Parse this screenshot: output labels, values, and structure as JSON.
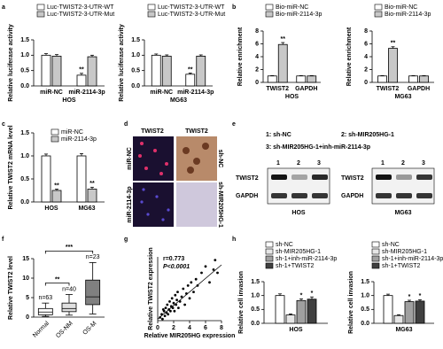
{
  "chart_data": [
    {
      "panel": "a",
      "type": "bar",
      "categories": [
        "miR-NC",
        "miR-2114-3p"
      ],
      "series": [
        {
          "name": "Luc-TWIST2-3-UTR-WT",
          "color": "#ffffff",
          "values": [
            1.0,
            0.35
          ],
          "errors": [
            0.05,
            0.06
          ],
          "significance": [
            null,
            "**"
          ]
        },
        {
          "name": "Luc-TWIST2-3-UTR-Mut",
          "color": "#c8c8c8",
          "values": [
            0.97,
            0.95
          ],
          "errors": [
            0.05,
            0.05
          ],
          "significance": [
            null,
            null
          ]
        }
      ],
      "ylabel": "Relative luciferase activity",
      "xlabel": "HOS",
      "ylim": [
        0,
        1.5
      ],
      "yticks": [
        {
          "value": 0,
          "label": "0.0"
        },
        {
          "value": 0.5,
          "label": "0.5"
        },
        {
          "value": 1,
          "label": "1.0"
        },
        {
          "value": 1.5,
          "label": "1.5"
        }
      ]
    },
    {
      "type": "bar",
      "categories": [
        "miR-NC",
        "miR-2114-3p"
      ],
      "series": [
        {
          "name": "Luc-TWIST2-3-UTR-WT",
          "color": "#ffffff",
          "values": [
            1.0,
            0.38
          ],
          "errors": [
            0.04,
            0.04
          ],
          "significance": [
            null,
            "**"
          ]
        },
        {
          "name": "Luc-TWIST2-3-UTR-Mut",
          "color": "#c8c8c8",
          "values": [
            0.97,
            0.97
          ],
          "errors": [
            0.04,
            0.04
          ],
          "significance": [
            null,
            null
          ]
        }
      ],
      "ylabel": "Relative luciferase activity",
      "xlabel": "MG63",
      "ylim": [
        0,
        1.5
      ],
      "yticks": [
        {
          "value": 0,
          "label": "0.0"
        },
        {
          "value": 0.5,
          "label": "0.5"
        },
        {
          "value": 1,
          "label": "1.0"
        },
        {
          "value": 1.5,
          "label": "1.5"
        }
      ]
    },
    {
      "panel": "b",
      "type": "bar",
      "categories": [
        "TWIST2",
        "GAPDH"
      ],
      "series": [
        {
          "name": "Bio-miR-NC",
          "color": "#ffffff",
          "values": [
            1.0,
            1.0
          ],
          "errors": [
            0.05,
            0.05
          ],
          "significance": [
            null,
            null
          ]
        },
        {
          "name": "Bio-miR-2114-3p",
          "color": "#c8c8c8",
          "values": [
            5.9,
            1.0
          ],
          "errors": [
            0.3,
            0.05
          ],
          "significance": [
            "**",
            null
          ]
        }
      ],
      "ylabel": "Relative enrichment",
      "xlabel": "HOS",
      "ylim": [
        0,
        8
      ],
      "yticks": [
        0,
        2,
        4,
        6,
        8
      ]
    },
    {
      "type": "bar",
      "categories": [
        "TWIST2",
        "GAPDH"
      ],
      "series": [
        {
          "name": "Bio-miR-NC",
          "color": "#ffffff",
          "values": [
            1.0,
            1.0
          ],
          "errors": [
            0.05,
            0.05
          ],
          "significance": [
            null,
            null
          ]
        },
        {
          "name": "Bio-miR-2114-3p",
          "color": "#c8c8c8",
          "values": [
            5.3,
            1.0
          ],
          "errors": [
            0.25,
            0.05
          ],
          "significance": [
            "**",
            null
          ]
        }
      ],
      "ylabel": "Relative enrichment",
      "xlabel": "MG63",
      "ylim": [
        0,
        8
      ],
      "yticks": [
        0,
        2,
        4,
        6,
        8
      ]
    },
    {
      "panel": "c",
      "type": "bar",
      "categories": [
        "HOS",
        "MG63"
      ],
      "series": [
        {
          "name": "miR-NC",
          "color": "#ffffff",
          "values": [
            1.0,
            1.0
          ],
          "errors": [
            0.04,
            0.05
          ],
          "significance": [
            null,
            null
          ]
        },
        {
          "name": "miR-2114-3p",
          "color": "#c8c8c8",
          "values": [
            0.25,
            0.28
          ],
          "errors": [
            0.03,
            0.04
          ],
          "significance": [
            "**",
            "**"
          ]
        }
      ],
      "ylabel": "Relative TWIST2 mRNA level",
      "ylim": [
        0,
        1.5
      ],
      "yticks": [
        {
          "value": 0,
          "label": "0.0"
        },
        {
          "value": 0.5,
          "label": "0.5"
        },
        {
          "value": 1,
          "label": "1.0"
        },
        {
          "value": 1.5,
          "label": "1.5"
        }
      ]
    },
    {
      "panel": "f",
      "type": "box",
      "categories": [
        "Normal",
        "OS-NM",
        "OS-M"
      ],
      "boxes": [
        {
          "min": 0.2,
          "q1": 0.6,
          "median": 1.3,
          "q3": 2.2,
          "max": 3.6
        },
        {
          "min": 0.5,
          "q1": 1.4,
          "median": 2.2,
          "q3": 3.6,
          "max": 5.8
        },
        {
          "min": 0.8,
          "q1": 3.2,
          "median": 5.2,
          "q3": 9.5,
          "max": 14
        }
      ],
      "colors": [
        "#ffffff",
        "#e0e0e0",
        "#808080"
      ],
      "n_labels": [
        "n=63",
        "n=40",
        "n=23"
      ],
      "comparisons": [
        {
          "text": "**",
          "pair": [
            0,
            1
          ]
        },
        {
          "text": "***",
          "pair": [
            0,
            2
          ]
        }
      ],
      "ylabel": "Relative TWIST2 level",
      "ylim": [
        0,
        15
      ],
      "yticks": [
        0,
        5,
        10,
        15
      ]
    },
    {
      "panel": "g",
      "type": "scatter",
      "x": [
        0.3,
        0.5,
        0.6,
        0.8,
        0.9,
        1.0,
        1.1,
        1.2,
        1.3,
        1.4,
        1.5,
        1.6,
        1.7,
        1.8,
        1.9,
        2.0,
        2.1,
        2.2,
        2.3,
        2.4,
        2.5,
        2.6,
        2.8,
        3.0,
        3.2,
        3.4,
        3.6,
        3.8,
        4.0,
        4.2,
        4.5,
        4.8,
        5.0,
        5.5,
        6.0,
        6.5,
        7.0,
        7.2,
        7.5,
        0.7
      ],
      "y": [
        0.1,
        0.2,
        0.05,
        0.3,
        0.15,
        0.4,
        0.25,
        0.5,
        0.2,
        0.35,
        0.6,
        0.3,
        0.45,
        0.7,
        0.4,
        0.55,
        0.3,
        0.8,
        0.5,
        0.65,
        0.9,
        0.4,
        0.6,
        0.75,
        1.0,
        0.5,
        0.85,
        1.1,
        0.7,
        1.2,
        0.9,
        1.3,
        1.1,
        1.5,
        1.7,
        1.2,
        1.6,
        1.9,
        1.5,
        0.35
      ],
      "fit": {
        "x": [
          0,
          8
        ],
        "y": [
          0.05,
          1.75
        ]
      },
      "annotations": [
        "r=0.773",
        "P<0.0001"
      ],
      "xlabel": "Relative MIR205HG expression",
      "ylabel": "Relative TWIST2 expression",
      "xlim": [
        0,
        8
      ],
      "xticks": [
        0,
        2,
        4,
        6,
        8
      ],
      "ylim": [
        0,
        2
      ]
    },
    {
      "panel": "h",
      "type": "bar",
      "categories": [
        "HOS"
      ],
      "series": [
        {
          "name": "sh-NC",
          "color": "#ffffff",
          "values": [
            1.0
          ],
          "errors": [
            0.06
          ],
          "significance": [
            null
          ]
        },
        {
          "name": "sh-MIR205HG-1",
          "color": "#e6e6e6",
          "values": [
            0.3
          ],
          "errors": [
            0.04
          ],
          "significance": [
            null
          ]
        },
        {
          "name": "sh-1+inh-miR-2114-3p",
          "color": "#a0a0a0",
          "values": [
            0.82
          ],
          "errors": [
            0.06
          ],
          "significance": [
            "*"
          ]
        },
        {
          "name": "sh-1+TWIST2",
          "color": "#404040",
          "values": [
            0.87
          ],
          "errors": [
            0.08
          ],
          "significance": [
            "*"
          ]
        }
      ],
      "ylabel": "Relative cell invasion",
      "ylim": [
        0,
        1.5
      ],
      "yticks": [
        {
          "value": 0,
          "label": "0.0"
        },
        {
          "value": 0.5,
          "label": "0.5"
        },
        {
          "value": 1,
          "label": "1.0"
        },
        {
          "value": 1.5,
          "label": "1.5"
        }
      ]
    },
    {
      "type": "bar",
      "categories": [
        "MG63"
      ],
      "series": [
        {
          "name": "sh-NC",
          "color": "#ffffff",
          "values": [
            1.0
          ],
          "errors": [
            0.05
          ],
          "significance": [
            null
          ]
        },
        {
          "name": "sh-MIR205HG-1",
          "color": "#e6e6e6",
          "values": [
            0.28
          ],
          "errors": [
            0.03
          ],
          "significance": [
            null
          ]
        },
        {
          "name": "sh-1+inh-miR-2114-3p",
          "color": "#a0a0a0",
          "values": [
            0.78
          ],
          "errors": [
            0.05
          ],
          "significance": [
            "*"
          ]
        },
        {
          "name": "sh-1+TWIST2",
          "color": "#404040",
          "values": [
            0.8
          ],
          "errors": [
            0.05
          ],
          "significance": [
            "*"
          ]
        }
      ],
      "ylabel": "Relative cell invasion",
      "ylim": [
        0,
        1.5
      ],
      "yticks": [
        {
          "value": 0,
          "label": "0.0"
        },
        {
          "value": 0.5,
          "label": "0.5"
        },
        {
          "value": 1,
          "label": "1.0"
        },
        {
          "value": 1.5,
          "label": "1.5"
        }
      ]
    }
  ],
  "panel_d": {
    "panel": "d",
    "column_labels": [
      "TWIST2",
      "TWIST2"
    ],
    "row_labels": [
      "miR-NC",
      "miR-2114-3p"
    ],
    "side_labels": [
      "sh-NC",
      "sh-MIR205HG-1"
    ]
  },
  "panel_e": {
    "panel": "e",
    "legend": [
      "1: sh-NC",
      "2: sh-MIR205HG-1",
      "3: sh-MIR205HG-1+inh-miR-2114-3p"
    ],
    "blots": [
      {
        "cell_line": "HOS",
        "lanes": [
          "1",
          "2",
          "3"
        ],
        "rows": [
          "TWIST2",
          "GAPDH"
        ]
      },
      {
        "cell_line": "MG63",
        "lanes": [
          "1",
          "2",
          "3"
        ],
        "rows": [
          "TWIST2",
          "GAPDH"
        ]
      }
    ]
  }
}
